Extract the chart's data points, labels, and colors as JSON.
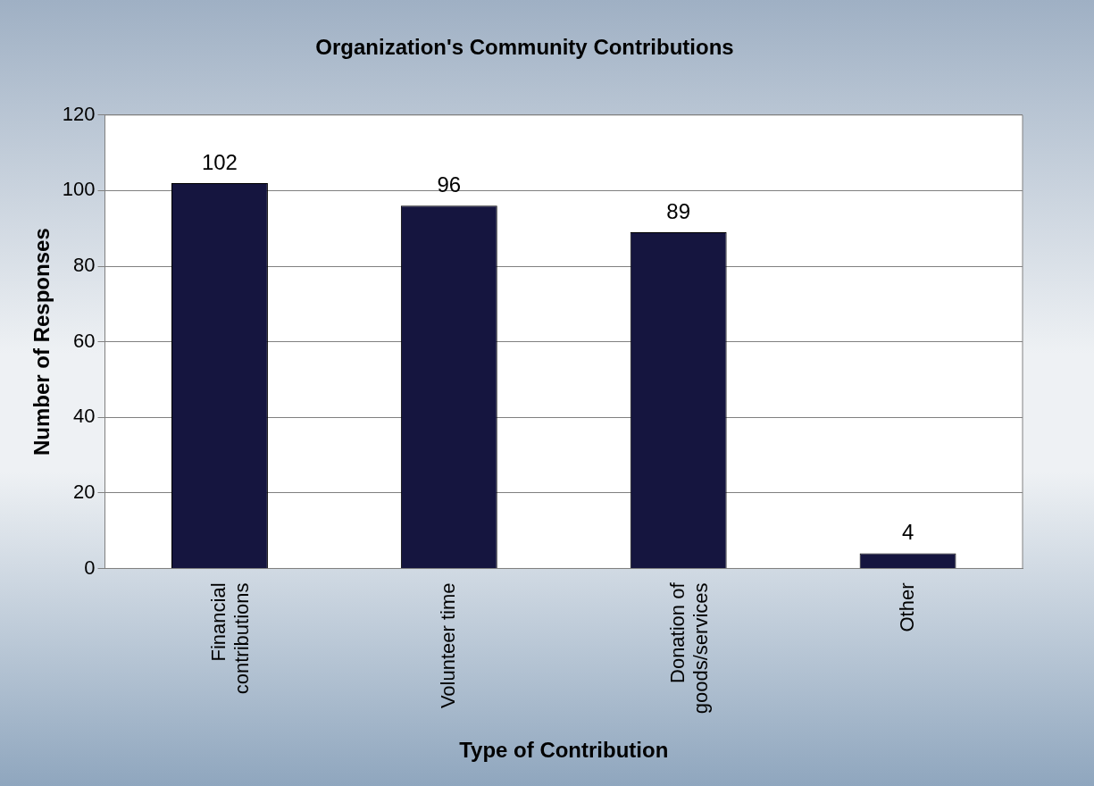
{
  "chart_data": {
    "type": "bar",
    "title": "Organization's Community Contributions",
    "xlabel": "Type of Contribution",
    "ylabel": "Number of Responses",
    "categories": [
      "Financial contributions",
      "Volunteer time",
      "Donation of goods/services",
      "Other"
    ],
    "values": [
      102,
      96,
      89,
      4
    ],
    "color": "#15153f",
    "ylim": [
      0,
      120
    ],
    "yticks": [
      0,
      20,
      40,
      60,
      80,
      100,
      120
    ],
    "grid": "y",
    "data_labels": true,
    "legend": false
  }
}
